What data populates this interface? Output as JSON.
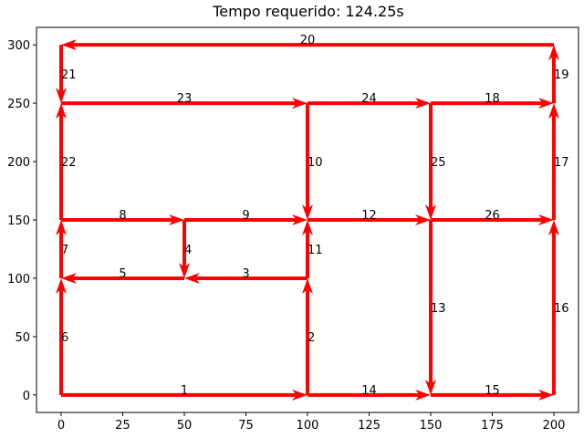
{
  "chart_data": {
    "type": "line",
    "title": "Tempo requerido: 124.25s",
    "xlabel": "",
    "ylabel": "",
    "xlim": [
      -10,
      210
    ],
    "ylim": [
      -15,
      315
    ],
    "xticks": [
      0,
      25,
      50,
      75,
      100,
      125,
      150,
      175,
      200
    ],
    "yticks": [
      0,
      50,
      100,
      150,
      200,
      250,
      300
    ],
    "grid": false,
    "series_color": "#ff0000",
    "edges": [
      {
        "label": "1",
        "from": [
          0,
          0
        ],
        "to": [
          100,
          0
        ]
      },
      {
        "label": "2",
        "from": [
          100,
          0
        ],
        "to": [
          100,
          100
        ]
      },
      {
        "label": "3",
        "from": [
          100,
          100
        ],
        "to": [
          50,
          100
        ]
      },
      {
        "label": "4",
        "from": [
          50,
          150
        ],
        "to": [
          50,
          100
        ]
      },
      {
        "label": "5",
        "from": [
          50,
          100
        ],
        "to": [
          0,
          100
        ]
      },
      {
        "label": "6",
        "from": [
          0,
          0
        ],
        "to": [
          0,
          100
        ]
      },
      {
        "label": "7",
        "from": [
          0,
          100
        ],
        "to": [
          0,
          150
        ]
      },
      {
        "label": "8",
        "from": [
          0,
          150
        ],
        "to": [
          50,
          150
        ]
      },
      {
        "label": "9",
        "from": [
          50,
          150
        ],
        "to": [
          100,
          150
        ]
      },
      {
        "label": "10",
        "from": [
          100,
          250
        ],
        "to": [
          100,
          150
        ]
      },
      {
        "label": "11",
        "from": [
          100,
          100
        ],
        "to": [
          100,
          150
        ]
      },
      {
        "label": "12",
        "from": [
          100,
          150
        ],
        "to": [
          150,
          150
        ]
      },
      {
        "label": "13",
        "from": [
          150,
          150
        ],
        "to": [
          150,
          0
        ]
      },
      {
        "label": "14",
        "from": [
          100,
          0
        ],
        "to": [
          150,
          0
        ]
      },
      {
        "label": "15",
        "from": [
          150,
          0
        ],
        "to": [
          200,
          0
        ]
      },
      {
        "label": "16",
        "from": [
          200,
          0
        ],
        "to": [
          200,
          150
        ]
      },
      {
        "label": "17",
        "from": [
          200,
          150
        ],
        "to": [
          200,
          250
        ]
      },
      {
        "label": "18",
        "from": [
          150,
          250
        ],
        "to": [
          200,
          250
        ]
      },
      {
        "label": "19",
        "from": [
          200,
          250
        ],
        "to": [
          200,
          300
        ]
      },
      {
        "label": "20",
        "from": [
          200,
          300
        ],
        "to": [
          0,
          300
        ]
      },
      {
        "label": "21",
        "from": [
          0,
          300
        ],
        "to": [
          0,
          250
        ]
      },
      {
        "label": "22",
        "from": [
          0,
          150
        ],
        "to": [
          0,
          250
        ]
      },
      {
        "label": "23",
        "from": [
          0,
          250
        ],
        "to": [
          100,
          250
        ]
      },
      {
        "label": "24",
        "from": [
          100,
          250
        ],
        "to": [
          150,
          250
        ]
      },
      {
        "label": "25",
        "from": [
          150,
          250
        ],
        "to": [
          150,
          150
        ]
      },
      {
        "label": "26",
        "from": [
          150,
          150
        ],
        "to": [
          200,
          150
        ]
      }
    ]
  }
}
